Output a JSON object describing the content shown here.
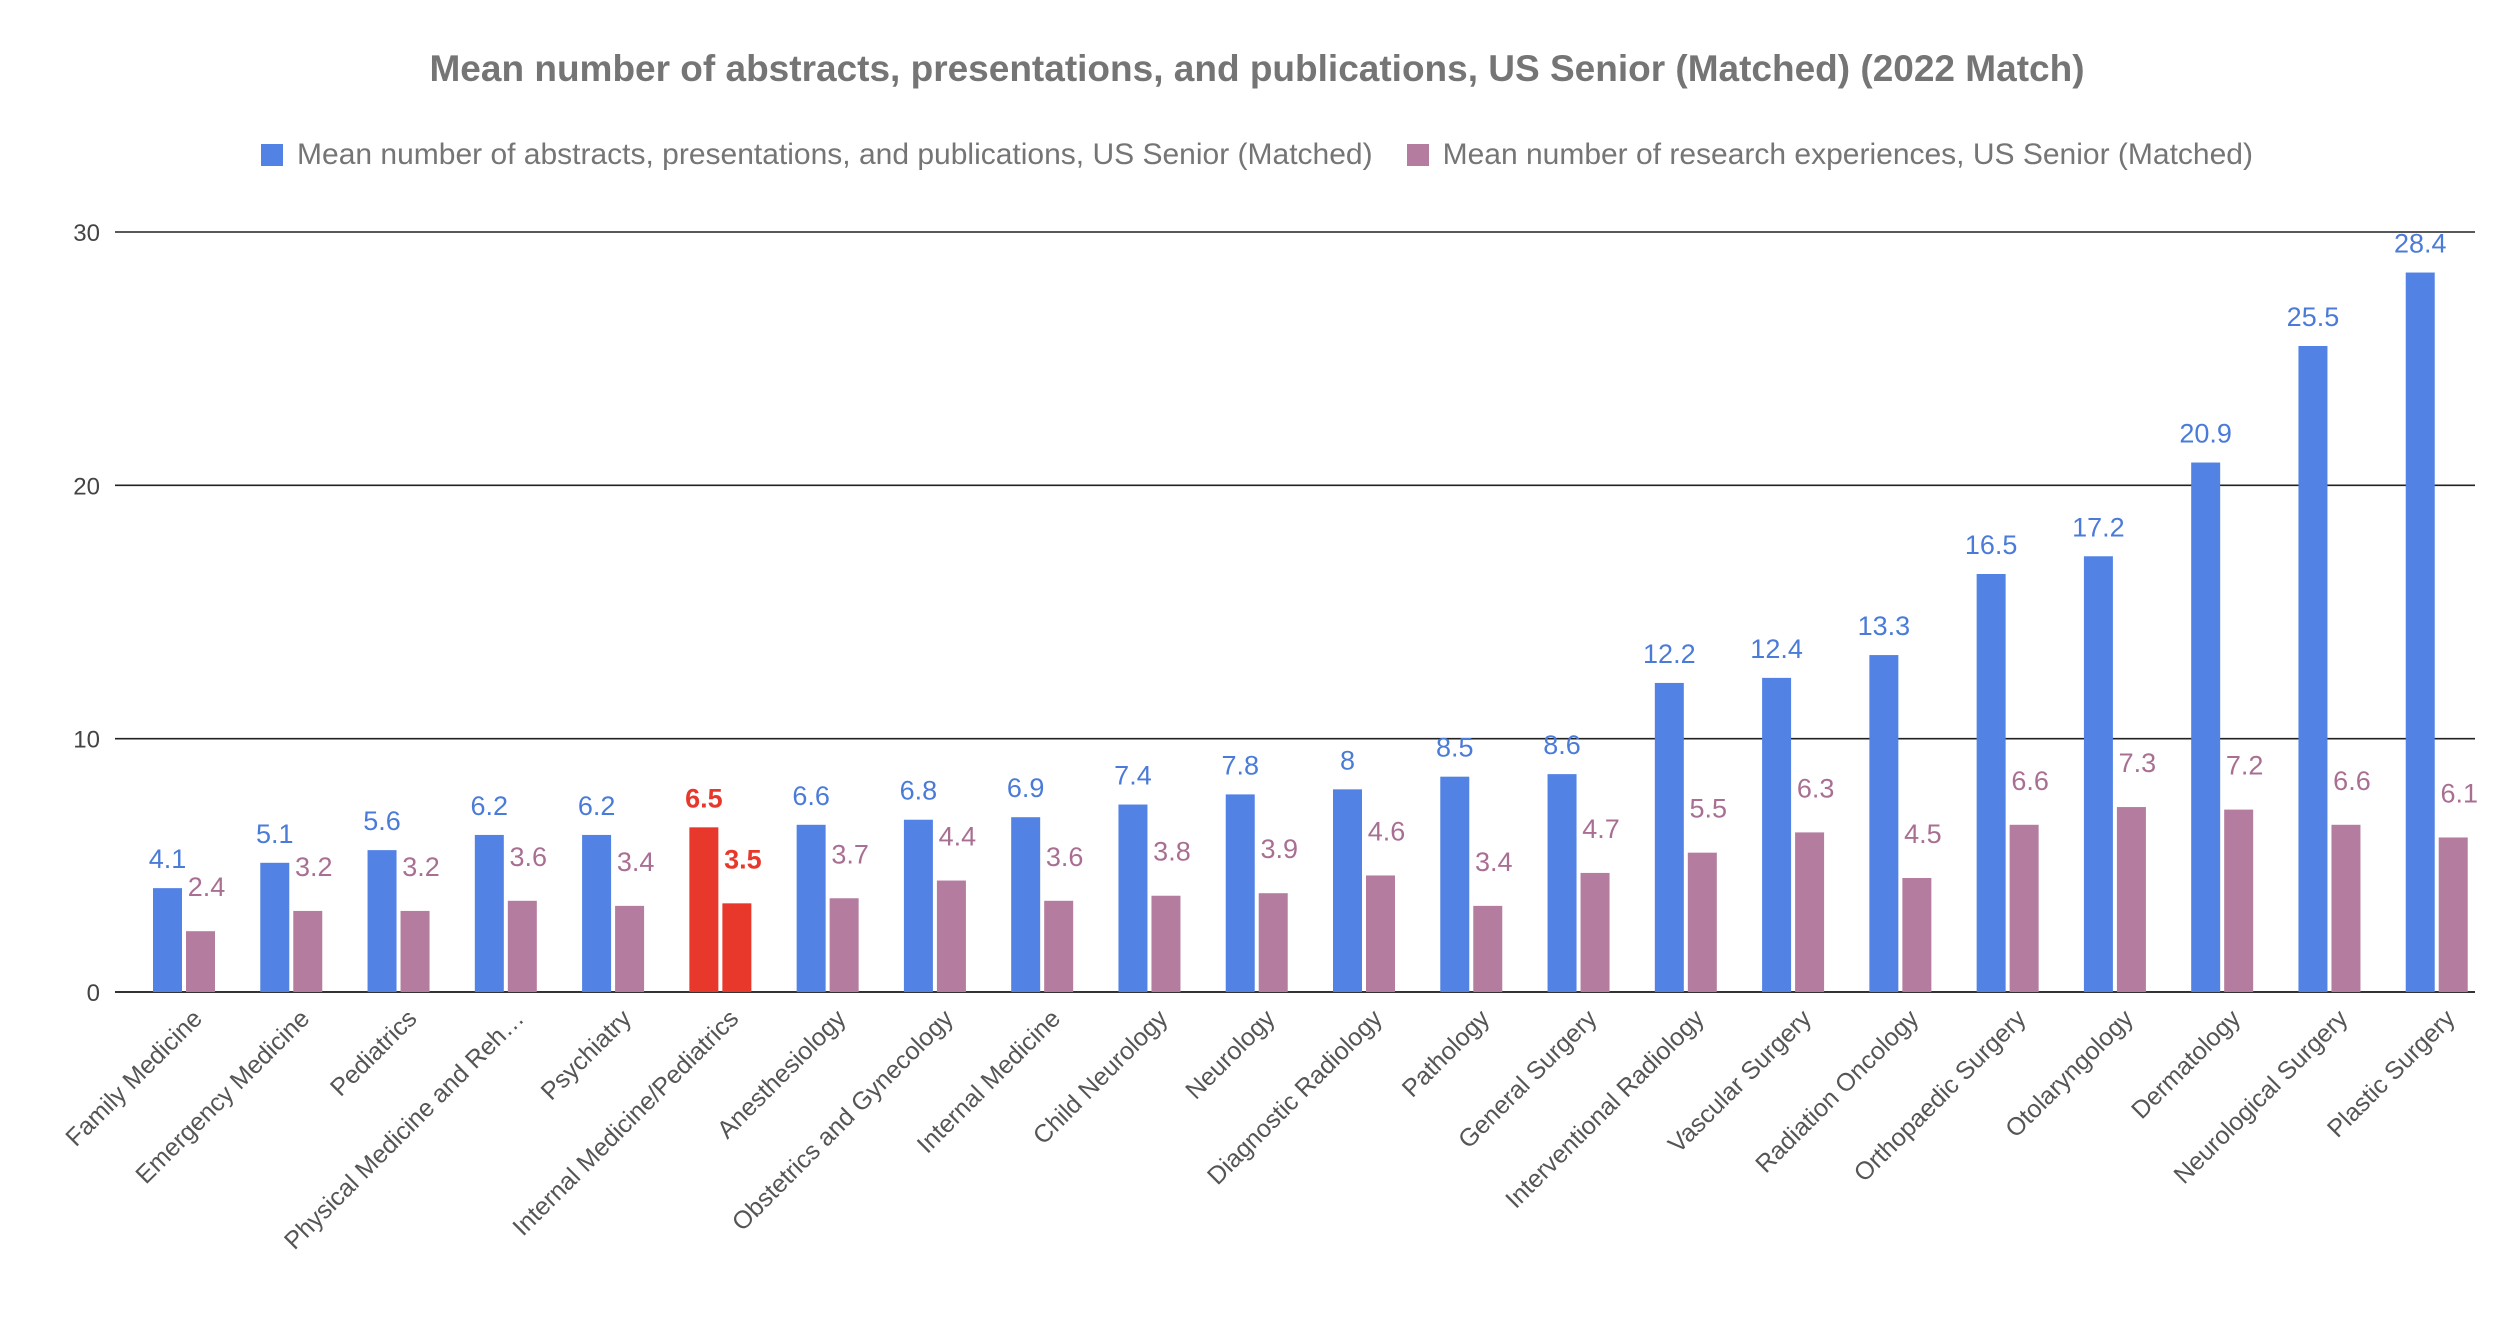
{
  "chart_data": {
    "type": "bar",
    "title": "Mean number of abstracts, presentations, and publications, US Senior (Matched) (2022 Match)",
    "xlabel": "",
    "ylabel": "",
    "ylim": [
      0,
      30
    ],
    "yticks": [
      0,
      10,
      20,
      30
    ],
    "grid": true,
    "legend_position": "top",
    "categories": [
      "Family Medicine",
      "Emergency Medicine",
      "Pediatrics",
      "Physical Medicine and Reh…",
      "Psychiatry",
      "Internal Medicine/Pediatrics",
      "Anesthesiology",
      "Obstetrics and Gynecology",
      "Internal Medicine",
      "Child Neurology",
      "Neurology",
      "Diagnostic Radiology",
      "Pathology",
      "General Surgery",
      "Interventional Radiology",
      "Vascular Surgery",
      "Radiation Oncology",
      "Orthopaedic Surgery",
      "Otolaryngology",
      "Dermatology",
      "Neurological Surgery",
      "Plastic Surgery"
    ],
    "series": [
      {
        "name": "Mean number of abstracts, presentations, and publications, US Senior (Matched)",
        "color": "#5283e4",
        "values": [
          4.1,
          5.1,
          5.6,
          6.2,
          6.2,
          6.5,
          6.6,
          6.8,
          6.9,
          7.4,
          7.8,
          8,
          8.5,
          8.6,
          12.2,
          12.4,
          13.3,
          16.5,
          17.2,
          20.9,
          25.5,
          28.4
        ]
      },
      {
        "name": "Mean number of research experiences, US Senior (Matched)",
        "color": "#b47c9e",
        "values": [
          2.4,
          3.2,
          3.2,
          3.6,
          3.4,
          3.5,
          3.7,
          4.4,
          3.6,
          3.8,
          3.9,
          4.6,
          3.4,
          4.7,
          5.5,
          6.3,
          4.5,
          6.6,
          7.3,
          7.2,
          6.6,
          6.1
        ]
      }
    ],
    "highlight": {
      "category_index": 5,
      "color": "#e8382b"
    }
  }
}
